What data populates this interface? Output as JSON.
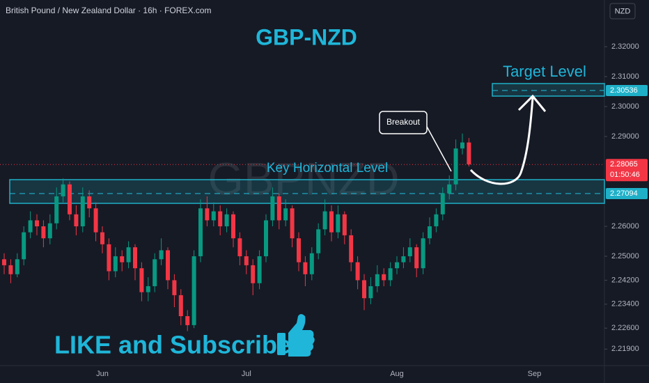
{
  "header": {
    "symbol": "British Pound / New Zealand Dollar · 16h · FOREX.com",
    "currency": "NZD"
  },
  "chart_data": {
    "type": "candlestick",
    "title": "GBP-NZD",
    "watermark": "GBPNZD",
    "categories": [
      null,
      null,
      null,
      null,
      null,
      null,
      null,
      null,
      null,
      null,
      null,
      null,
      null,
      null,
      null,
      "Jun",
      null,
      null,
      null,
      null,
      null,
      null,
      null,
      null,
      null,
      null,
      null,
      null,
      null,
      null,
      null,
      null,
      null,
      null,
      null,
      null,
      null,
      "Jul",
      null,
      null,
      null,
      null,
      null,
      null,
      null,
      null,
      null,
      null,
      null,
      null,
      null,
      null,
      null,
      null,
      null,
      null,
      null,
      null,
      null,
      null,
      "Aug",
      null,
      null,
      null,
      null,
      null,
      null,
      null,
      null,
      null,
      null,
      null,
      null,
      null,
      null,
      null,
      null,
      null,
      null,
      null,
      null,
      "Sep"
    ],
    "open": [
      2.249,
      2.247,
      2.244,
      2.249,
      2.258,
      2.262,
      2.26,
      2.256,
      2.261,
      2.27,
      2.274,
      2.264,
      2.26,
      2.27,
      2.266,
      2.258,
      2.254,
      2.245,
      2.25,
      2.248,
      2.253,
      2.246,
      2.238,
      2.24,
      2.249,
      2.252,
      2.242,
      2.237,
      2.23,
      2.227,
      2.25,
      2.266,
      2.262,
      2.265,
      2.26,
      2.264,
      2.256,
      2.25,
      2.247,
      2.241,
      2.25,
      2.262,
      2.27,
      2.262,
      2.266,
      2.256,
      2.248,
      2.244,
      2.251,
      2.259,
      2.265,
      2.258,
      2.264,
      2.257,
      2.248,
      2.242,
      2.236,
      2.24,
      2.244,
      2.242,
      2.246,
      2.248,
      2.25,
      2.253,
      2.246,
      2.256,
      2.26,
      2.264,
      2.271,
      2.274,
      2.286,
      2.288,
      null,
      null,
      null,
      null,
      null,
      null,
      null,
      null,
      null,
      null
    ],
    "high": [
      2.251,
      2.249,
      2.251,
      2.26,
      2.265,
      2.264,
      2.262,
      2.264,
      2.273,
      2.276,
      2.275,
      2.267,
      2.273,
      2.272,
      2.268,
      2.26,
      2.256,
      2.253,
      2.252,
      2.255,
      2.254,
      2.248,
      2.243,
      2.251,
      2.256,
      2.253,
      2.244,
      2.239,
      2.232,
      2.252,
      2.269,
      2.27,
      2.268,
      2.267,
      2.266,
      2.265,
      2.258,
      2.252,
      2.249,
      2.252,
      2.264,
      2.273,
      2.271,
      2.269,
      2.267,
      2.258,
      2.25,
      2.253,
      2.261,
      2.269,
      2.267,
      2.267,
      2.265,
      2.259,
      2.25,
      2.244,
      2.243,
      2.247,
      2.246,
      2.248,
      2.25,
      2.253,
      2.256,
      2.254,
      2.258,
      2.263,
      2.266,
      2.273,
      2.277,
      2.289,
      2.291,
      2.2895,
      null,
      null,
      null,
      null,
      null,
      null,
      null,
      null,
      null,
      null
    ],
    "low": [
      2.244,
      2.241,
      2.243,
      2.247,
      2.256,
      2.257,
      2.253,
      2.254,
      2.259,
      2.268,
      2.262,
      2.257,
      2.258,
      2.263,
      2.255,
      2.251,
      2.242,
      2.243,
      2.245,
      2.246,
      2.242,
      2.235,
      2.235,
      2.238,
      2.247,
      2.239,
      2.233,
      2.227,
      2.225,
      2.226,
      2.248,
      2.26,
      2.26,
      2.257,
      2.258,
      2.253,
      2.247,
      2.244,
      2.237,
      2.239,
      2.248,
      2.26,
      2.259,
      2.26,
      2.253,
      2.245,
      2.24,
      2.242,
      2.249,
      2.257,
      2.255,
      2.256,
      2.254,
      2.245,
      2.239,
      2.232,
      2.234,
      2.238,
      2.24,
      2.24,
      2.244,
      2.246,
      2.248,
      2.243,
      2.244,
      2.254,
      2.258,
      2.262,
      2.269,
      2.272,
      2.284,
      2.28,
      null,
      null,
      null,
      null,
      null,
      null,
      null,
      null,
      null,
      null
    ],
    "close": [
      2.247,
      2.244,
      2.249,
      2.258,
      2.262,
      2.26,
      2.256,
      2.261,
      2.27,
      2.274,
      2.264,
      2.26,
      2.27,
      2.266,
      2.258,
      2.254,
      2.245,
      2.25,
      2.248,
      2.253,
      2.246,
      2.238,
      2.24,
      2.249,
      2.252,
      2.242,
      2.237,
      2.23,
      2.227,
      2.25,
      2.266,
      2.262,
      2.265,
      2.26,
      2.264,
      2.256,
      2.25,
      2.247,
      2.241,
      2.25,
      2.262,
      2.27,
      2.262,
      2.266,
      2.256,
      2.248,
      2.244,
      2.251,
      2.259,
      2.265,
      2.258,
      2.264,
      2.257,
      2.248,
      2.242,
      2.236,
      2.24,
      2.244,
      2.242,
      2.246,
      2.248,
      2.25,
      2.253,
      2.246,
      2.256,
      2.26,
      2.264,
      2.271,
      2.274,
      2.286,
      2.288,
      2.2807,
      null,
      null,
      null,
      null,
      null,
      null,
      null,
      null,
      null,
      null
    ],
    "colors": {
      "up": "#089981",
      "down": "#f23645"
    },
    "ylim": [
      2.21349,
      2.33558
    ],
    "yticks": [
      {
        "value": 2.219,
        "label": "2.21900"
      },
      {
        "value": 2.226,
        "label": "2.22600"
      },
      {
        "value": 2.234,
        "label": "2.23400"
      },
      {
        "value": 2.242,
        "label": "2.24200"
      },
      {
        "value": 2.25,
        "label": "2.25000"
      },
      {
        "value": 2.26,
        "label": "2.26000"
      },
      {
        "value": 2.29,
        "label": "2.29000"
      },
      {
        "value": 2.3,
        "label": "2.30000"
      },
      {
        "value": 2.31,
        "label": "2.31000"
      },
      {
        "value": 2.32,
        "label": "2.32000"
      }
    ],
    "levels": [
      {
        "name": "Key Horizontal Level",
        "low": 2.26767,
        "high": 2.27558,
        "price": 2.27094,
        "color": "#1fb0c8"
      },
      {
        "name": "Target Level",
        "low": 2.30349,
        "high": 2.30767,
        "price": 2.30536,
        "color": "#1fb0c8"
      }
    ],
    "last_price": {
      "value": 2.28065,
      "countdown": "01:50:46",
      "color": "#f23645"
    },
    "annotations": {
      "breakout": "Breakout",
      "cta": "LIKE and Subscribe"
    }
  }
}
